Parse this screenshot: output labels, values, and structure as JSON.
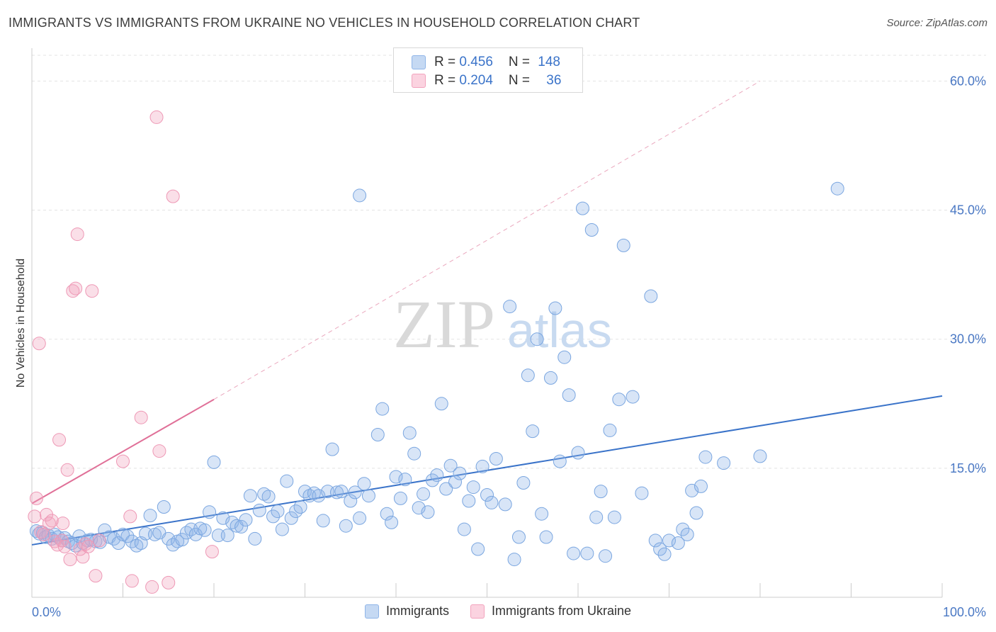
{
  "title": "IMMIGRANTS VS IMMIGRANTS FROM UKRAINE NO VEHICLES IN HOUSEHOLD CORRELATION CHART",
  "source": "Source: ZipAtlas.com",
  "watermark": {
    "zip": "ZIP",
    "atlas": "atlas"
  },
  "legend": {
    "rows": [
      {
        "r_label": "R = ",
        "r_value": "0.456",
        "n_label": "N = ",
        "n_value": "148",
        "color": "#8fb5e8"
      },
      {
        "r_label": "R = ",
        "r_value": "0.204",
        "n_label": "N = ",
        "n_value": "36",
        "color": "#f2a3bd"
      }
    ]
  },
  "bottom_legend": [
    {
      "label": "Immigrants",
      "color": "#8fb5e8"
    },
    {
      "label": "Immigrants from Ukraine",
      "color": "#f2a3bd"
    }
  ],
  "chart_data": {
    "type": "scatter",
    "title": "IMMIGRANTS VS IMMIGRANTS FROM UKRAINE NO VEHICLES IN HOUSEHOLD CORRELATION CHART",
    "xlabel": "",
    "ylabel": "No Vehicles in Household",
    "xlim": [
      0,
      100
    ],
    "ylim": [
      0,
      63
    ],
    "x_tick_labels": [
      "0.0%",
      "100.0%"
    ],
    "y_ticks": [
      15,
      30,
      45,
      60
    ],
    "y_tick_labels": [
      "15.0%",
      "30.0%",
      "45.0%",
      "60.0%"
    ],
    "grid": true,
    "legend_position": "top-center",
    "series": [
      {
        "name": "Immigrants",
        "color": "#8fb5e8",
        "trend": {
          "x": [
            0,
            100
          ],
          "y": [
            6.1,
            23.4
          ],
          "color": "#3a73c9"
        },
        "points": [
          [
            0.5,
            7.7
          ],
          [
            0.8,
            7.4
          ],
          [
            1.2,
            7.5
          ],
          [
            1.5,
            7.0
          ],
          [
            1.8,
            7.2
          ],
          [
            2.2,
            6.8
          ],
          [
            2.5,
            7.3
          ],
          [
            2.9,
            7.0
          ],
          [
            3.3,
            6.6
          ],
          [
            3.6,
            6.9
          ],
          [
            4.0,
            6.5
          ],
          [
            4.4,
            6.3
          ],
          [
            4.8,
            6.0
          ],
          [
            5.2,
            7.1
          ],
          [
            5.6,
            6.3
          ],
          [
            6.1,
            6.6
          ],
          [
            6.5,
            6.7
          ],
          [
            7.0,
            6.5
          ],
          [
            7.5,
            6.4
          ],
          [
            8.0,
            7.8
          ],
          [
            8.5,
            7.0
          ],
          [
            9.0,
            6.8
          ],
          [
            9.5,
            6.3
          ],
          [
            10.0,
            7.3
          ],
          [
            10.5,
            7.1
          ],
          [
            11.0,
            6.5
          ],
          [
            11.5,
            6.0
          ],
          [
            12.0,
            6.3
          ],
          [
            12.5,
            7.4
          ],
          [
            13.0,
            9.5
          ],
          [
            13.5,
            7.3
          ],
          [
            14.0,
            7.5
          ],
          [
            14.5,
            10.5
          ],
          [
            15.0,
            6.8
          ],
          [
            15.5,
            6.1
          ],
          [
            16.0,
            6.5
          ],
          [
            16.5,
            6.7
          ],
          [
            17.0,
            7.5
          ],
          [
            17.5,
            7.9
          ],
          [
            18.0,
            7.3
          ],
          [
            18.5,
            8.0
          ],
          [
            19.0,
            7.8
          ],
          [
            19.5,
            9.9
          ],
          [
            20.0,
            15.7
          ],
          [
            20.5,
            7.2
          ],
          [
            21.0,
            9.2
          ],
          [
            21.5,
            7.2
          ],
          [
            22.0,
            8.7
          ],
          [
            22.5,
            8.3
          ],
          [
            23.0,
            8.2
          ],
          [
            23.5,
            9.0
          ],
          [
            24.0,
            11.8
          ],
          [
            24.5,
            6.8
          ],
          [
            25.0,
            10.1
          ],
          [
            25.5,
            12.0
          ],
          [
            26.0,
            11.7
          ],
          [
            26.5,
            9.4
          ],
          [
            27.0,
            10.0
          ],
          [
            27.5,
            7.9
          ],
          [
            28.0,
            13.5
          ],
          [
            28.5,
            9.2
          ],
          [
            29.0,
            10.0
          ],
          [
            29.5,
            10.5
          ],
          [
            30.0,
            12.3
          ],
          [
            30.5,
            11.8
          ],
          [
            31.0,
            12.1
          ],
          [
            31.5,
            11.8
          ],
          [
            32.0,
            8.9
          ],
          [
            32.5,
            12.3
          ],
          [
            33.0,
            17.2
          ],
          [
            33.5,
            12.2
          ],
          [
            34.0,
            12.3
          ],
          [
            34.5,
            8.3
          ],
          [
            35.0,
            11.2
          ],
          [
            35.5,
            12.2
          ],
          [
            36.0,
            9.2
          ],
          [
            36.5,
            13.2
          ],
          [
            37.0,
            11.8
          ],
          [
            38.0,
            18.9
          ],
          [
            38.5,
            21.9
          ],
          [
            39.0,
            9.7
          ],
          [
            39.5,
            8.7
          ],
          [
            40.0,
            14.0
          ],
          [
            40.5,
            11.5
          ],
          [
            41.0,
            13.7
          ],
          [
            41.5,
            19.1
          ],
          [
            42.0,
            16.7
          ],
          [
            42.5,
            10.4
          ],
          [
            43.0,
            12.0
          ],
          [
            43.5,
            9.9
          ],
          [
            44.0,
            13.6
          ],
          [
            44.5,
            14.2
          ],
          [
            45.0,
            22.5
          ],
          [
            45.5,
            12.6
          ],
          [
            46.0,
            15.3
          ],
          [
            46.5,
            13.4
          ],
          [
            47.0,
            14.4
          ],
          [
            47.5,
            7.9
          ],
          [
            48.0,
            11.2
          ],
          [
            48.5,
            12.8
          ],
          [
            49.0,
            5.6
          ],
          [
            49.5,
            15.2
          ],
          [
            50.0,
            11.9
          ],
          [
            50.5,
            11.0
          ],
          [
            51.0,
            16.1
          ],
          [
            52.0,
            10.8
          ],
          [
            52.5,
            33.8
          ],
          [
            53.0,
            4.4
          ],
          [
            53.5,
            7.0
          ],
          [
            54.0,
            13.3
          ],
          [
            54.5,
            25.8
          ],
          [
            55.0,
            19.3
          ],
          [
            55.5,
            30.0
          ],
          [
            56.0,
            9.7
          ],
          [
            56.5,
            7.0
          ],
          [
            57.0,
            25.5
          ],
          [
            57.5,
            33.6
          ],
          [
            58.0,
            15.8
          ],
          [
            58.5,
            27.9
          ],
          [
            59.0,
            23.5
          ],
          [
            59.5,
            5.1
          ],
          [
            60.0,
            16.8
          ],
          [
            60.5,
            45.2
          ],
          [
            61.0,
            5.1
          ],
          [
            61.5,
            42.7
          ],
          [
            62.0,
            9.3
          ],
          [
            62.5,
            12.3
          ],
          [
            63.0,
            4.8
          ],
          [
            63.5,
            19.4
          ],
          [
            64.0,
            9.3
          ],
          [
            64.5,
            23.0
          ],
          [
            65.0,
            40.9
          ],
          [
            66.0,
            23.3
          ],
          [
            67.0,
            12.1
          ],
          [
            68.0,
            35.0
          ],
          [
            68.5,
            6.6
          ],
          [
            69.0,
            5.6
          ],
          [
            69.5,
            5.0
          ],
          [
            70.0,
            6.6
          ],
          [
            71.0,
            6.3
          ],
          [
            71.5,
            7.9
          ],
          [
            72.0,
            7.3
          ],
          [
            72.5,
            12.4
          ],
          [
            73.0,
            9.8
          ],
          [
            73.5,
            12.9
          ],
          [
            74.0,
            16.3
          ],
          [
            76.0,
            15.6
          ],
          [
            80.0,
            16.4
          ],
          [
            88.5,
            47.5
          ],
          [
            36.0,
            46.7
          ]
        ]
      },
      {
        "name": "Immigrants from Ukraine",
        "color": "#f2a3bd",
        "trend": {
          "x": [
            0,
            20
          ],
          "y": [
            10.9,
            23.0
          ],
          "color": "#e07098",
          "extended_to": [
            80,
            60
          ]
        },
        "points": [
          [
            0.3,
            9.4
          ],
          [
            0.5,
            11.5
          ],
          [
            0.8,
            29.5
          ],
          [
            1.0,
            7.6
          ],
          [
            1.3,
            7.3
          ],
          [
            1.6,
            9.6
          ],
          [
            1.9,
            8.6
          ],
          [
            2.2,
            8.9
          ],
          [
            2.5,
            6.5
          ],
          [
            2.8,
            6.1
          ],
          [
            3.0,
            18.3
          ],
          [
            3.3,
            6.6
          ],
          [
            3.6,
            5.9
          ],
          [
            3.9,
            14.8
          ],
          [
            4.2,
            4.4
          ],
          [
            4.5,
            35.6
          ],
          [
            4.8,
            35.9
          ],
          [
            5.0,
            42.2
          ],
          [
            5.3,
            5.6
          ],
          [
            5.6,
            4.7
          ],
          [
            5.9,
            6.2
          ],
          [
            6.2,
            5.9
          ],
          [
            6.6,
            35.6
          ],
          [
            7.0,
            2.5
          ],
          [
            7.4,
            6.6
          ],
          [
            10.0,
            15.8
          ],
          [
            10.8,
            9.4
          ],
          [
            11.0,
            1.9
          ],
          [
            12.0,
            20.9
          ],
          [
            13.2,
            1.2
          ],
          [
            14.0,
            17.0
          ],
          [
            13.7,
            55.8
          ],
          [
            15.0,
            1.7
          ],
          [
            15.5,
            46.6
          ],
          [
            19.8,
            5.3
          ],
          [
            3.4,
            8.6
          ]
        ]
      }
    ]
  }
}
